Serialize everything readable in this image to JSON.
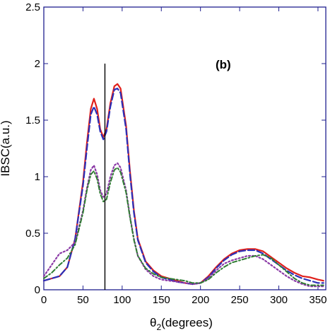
{
  "chart_data": {
    "type": "line",
    "panel_label": "(b)",
    "xlabel": {
      "symbol": "θ",
      "subscript": "2",
      "rest": "(degrees)"
    },
    "ylabel": "IBSC(a.u.)",
    "xlim": [
      0,
      360
    ],
    "ylim": [
      0,
      2.5
    ],
    "x_ticks": [
      0,
      50,
      100,
      150,
      200,
      250,
      300,
      350
    ],
    "y_ticks": [
      {
        "value": 0,
        "label": "0"
      },
      {
        "value": 0.5,
        "label": "0.5"
      },
      {
        "value": 1,
        "label": "1"
      },
      {
        "value": 1.5,
        "label": "1.5"
      },
      {
        "value": 2,
        "label": "2"
      },
      {
        "value": 2.5,
        "label": "2.5"
      }
    ],
    "grid": false,
    "vline": {
      "x": 78,
      "y_from": 0,
      "y_to": 2.0
    },
    "series": [
      {
        "color": "#e0201b",
        "dash": "none",
        "width": 2.2,
        "points": [
          [
            0,
            0.08
          ],
          [
            10,
            0.1
          ],
          [
            20,
            0.12
          ],
          [
            30,
            0.2
          ],
          [
            40,
            0.45
          ],
          [
            50,
            0.95
          ],
          [
            55,
            1.3
          ],
          [
            60,
            1.6
          ],
          [
            64,
            1.69
          ],
          [
            68,
            1.6
          ],
          [
            72,
            1.42
          ],
          [
            76,
            1.35
          ],
          [
            80,
            1.42
          ],
          [
            85,
            1.65
          ],
          [
            90,
            1.8
          ],
          [
            94,
            1.82
          ],
          [
            98,
            1.78
          ],
          [
            105,
            1.45
          ],
          [
            110,
            1.05
          ],
          [
            115,
            0.7
          ],
          [
            120,
            0.45
          ],
          [
            130,
            0.25
          ],
          [
            140,
            0.17
          ],
          [
            150,
            0.12
          ],
          [
            160,
            0.1
          ],
          [
            170,
            0.08
          ],
          [
            180,
            0.06
          ],
          [
            190,
            0.05
          ],
          [
            200,
            0.06
          ],
          [
            210,
            0.12
          ],
          [
            220,
            0.2
          ],
          [
            230,
            0.27
          ],
          [
            240,
            0.32
          ],
          [
            250,
            0.35
          ],
          [
            260,
            0.36
          ],
          [
            270,
            0.36
          ],
          [
            280,
            0.34
          ],
          [
            290,
            0.29
          ],
          [
            300,
            0.24
          ],
          [
            310,
            0.19
          ],
          [
            320,
            0.15
          ],
          [
            330,
            0.12
          ],
          [
            340,
            0.11
          ],
          [
            350,
            0.09
          ],
          [
            357,
            0.08
          ]
        ]
      },
      {
        "color": "#2b2fb8",
        "dash": "9,4",
        "width": 2.2,
        "points": [
          [
            0,
            0.08
          ],
          [
            10,
            0.1
          ],
          [
            20,
            0.12
          ],
          [
            30,
            0.2
          ],
          [
            40,
            0.45
          ],
          [
            50,
            0.92
          ],
          [
            55,
            1.25
          ],
          [
            60,
            1.55
          ],
          [
            64,
            1.62
          ],
          [
            68,
            1.55
          ],
          [
            72,
            1.4
          ],
          [
            76,
            1.33
          ],
          [
            80,
            1.4
          ],
          [
            85,
            1.62
          ],
          [
            90,
            1.77
          ],
          [
            94,
            1.78
          ],
          [
            98,
            1.74
          ],
          [
            105,
            1.42
          ],
          [
            110,
            1.02
          ],
          [
            115,
            0.68
          ],
          [
            120,
            0.44
          ],
          [
            130,
            0.24
          ],
          [
            140,
            0.16
          ],
          [
            150,
            0.11
          ],
          [
            160,
            0.09
          ],
          [
            170,
            0.07
          ],
          [
            180,
            0.06
          ],
          [
            190,
            0.05
          ],
          [
            200,
            0.06
          ],
          [
            210,
            0.11
          ],
          [
            220,
            0.19
          ],
          [
            230,
            0.26
          ],
          [
            240,
            0.31
          ],
          [
            250,
            0.34
          ],
          [
            260,
            0.35
          ],
          [
            270,
            0.35
          ],
          [
            280,
            0.32
          ],
          [
            290,
            0.27
          ],
          [
            300,
            0.22
          ],
          [
            310,
            0.17
          ],
          [
            320,
            0.13
          ],
          [
            330,
            0.1
          ],
          [
            340,
            0.08
          ],
          [
            350,
            0.06
          ],
          [
            357,
            0.06
          ]
        ]
      },
      {
        "color": "#8b3aa6",
        "dash": "2,3",
        "width": 2.2,
        "points": [
          [
            0,
            0.12
          ],
          [
            10,
            0.22
          ],
          [
            20,
            0.32
          ],
          [
            30,
            0.35
          ],
          [
            40,
            0.42
          ],
          [
            50,
            0.7
          ],
          [
            55,
            0.9
          ],
          [
            60,
            1.06
          ],
          [
            64,
            1.1
          ],
          [
            68,
            1.02
          ],
          [
            72,
            0.88
          ],
          [
            76,
            0.82
          ],
          [
            80,
            0.85
          ],
          [
            85,
            1.0
          ],
          [
            90,
            1.1
          ],
          [
            94,
            1.12
          ],
          [
            98,
            1.08
          ],
          [
            105,
            0.88
          ],
          [
            110,
            0.65
          ],
          [
            115,
            0.45
          ],
          [
            120,
            0.3
          ],
          [
            130,
            0.18
          ],
          [
            140,
            0.12
          ],
          [
            150,
            0.09
          ],
          [
            160,
            0.08
          ],
          [
            170,
            0.07
          ],
          [
            180,
            0.06
          ],
          [
            190,
            0.05
          ],
          [
            200,
            0.06
          ],
          [
            210,
            0.1
          ],
          [
            220,
            0.17
          ],
          [
            230,
            0.23
          ],
          [
            240,
            0.26
          ],
          [
            250,
            0.28
          ],
          [
            260,
            0.3
          ],
          [
            270,
            0.3
          ],
          [
            280,
            0.27
          ],
          [
            290,
            0.22
          ],
          [
            300,
            0.17
          ],
          [
            310,
            0.12
          ],
          [
            320,
            0.08
          ],
          [
            330,
            0.05
          ],
          [
            340,
            0.03
          ],
          [
            350,
            0.03
          ],
          [
            357,
            0.03
          ]
        ]
      },
      {
        "color": "#2f7d32",
        "dash": "6,3,2,3",
        "width": 2.0,
        "points": [
          [
            0,
            0.1
          ],
          [
            10,
            0.15
          ],
          [
            20,
            0.22
          ],
          [
            30,
            0.28
          ],
          [
            40,
            0.4
          ],
          [
            50,
            0.68
          ],
          [
            55,
            0.88
          ],
          [
            60,
            1.02
          ],
          [
            64,
            1.05
          ],
          [
            68,
            0.98
          ],
          [
            72,
            0.85
          ],
          [
            76,
            0.78
          ],
          [
            80,
            0.8
          ],
          [
            85,
            0.95
          ],
          [
            90,
            1.06
          ],
          [
            94,
            1.08
          ],
          [
            98,
            1.04
          ],
          [
            105,
            0.86
          ],
          [
            110,
            0.64
          ],
          [
            115,
            0.44
          ],
          [
            120,
            0.3
          ],
          [
            130,
            0.19
          ],
          [
            140,
            0.14
          ],
          [
            150,
            0.11
          ],
          [
            160,
            0.1
          ],
          [
            170,
            0.09
          ],
          [
            180,
            0.08
          ],
          [
            190,
            0.06
          ],
          [
            200,
            0.06
          ],
          [
            210,
            0.09
          ],
          [
            220,
            0.15
          ],
          [
            230,
            0.2
          ],
          [
            240,
            0.24
          ],
          [
            250,
            0.26
          ],
          [
            260,
            0.28
          ],
          [
            270,
            0.3
          ],
          [
            280,
            0.31
          ],
          [
            290,
            0.28
          ],
          [
            300,
            0.22
          ],
          [
            310,
            0.16
          ],
          [
            320,
            0.1
          ],
          [
            330,
            0.06
          ],
          [
            340,
            0.04
          ],
          [
            350,
            0.04
          ],
          [
            357,
            0.04
          ]
        ]
      }
    ]
  }
}
